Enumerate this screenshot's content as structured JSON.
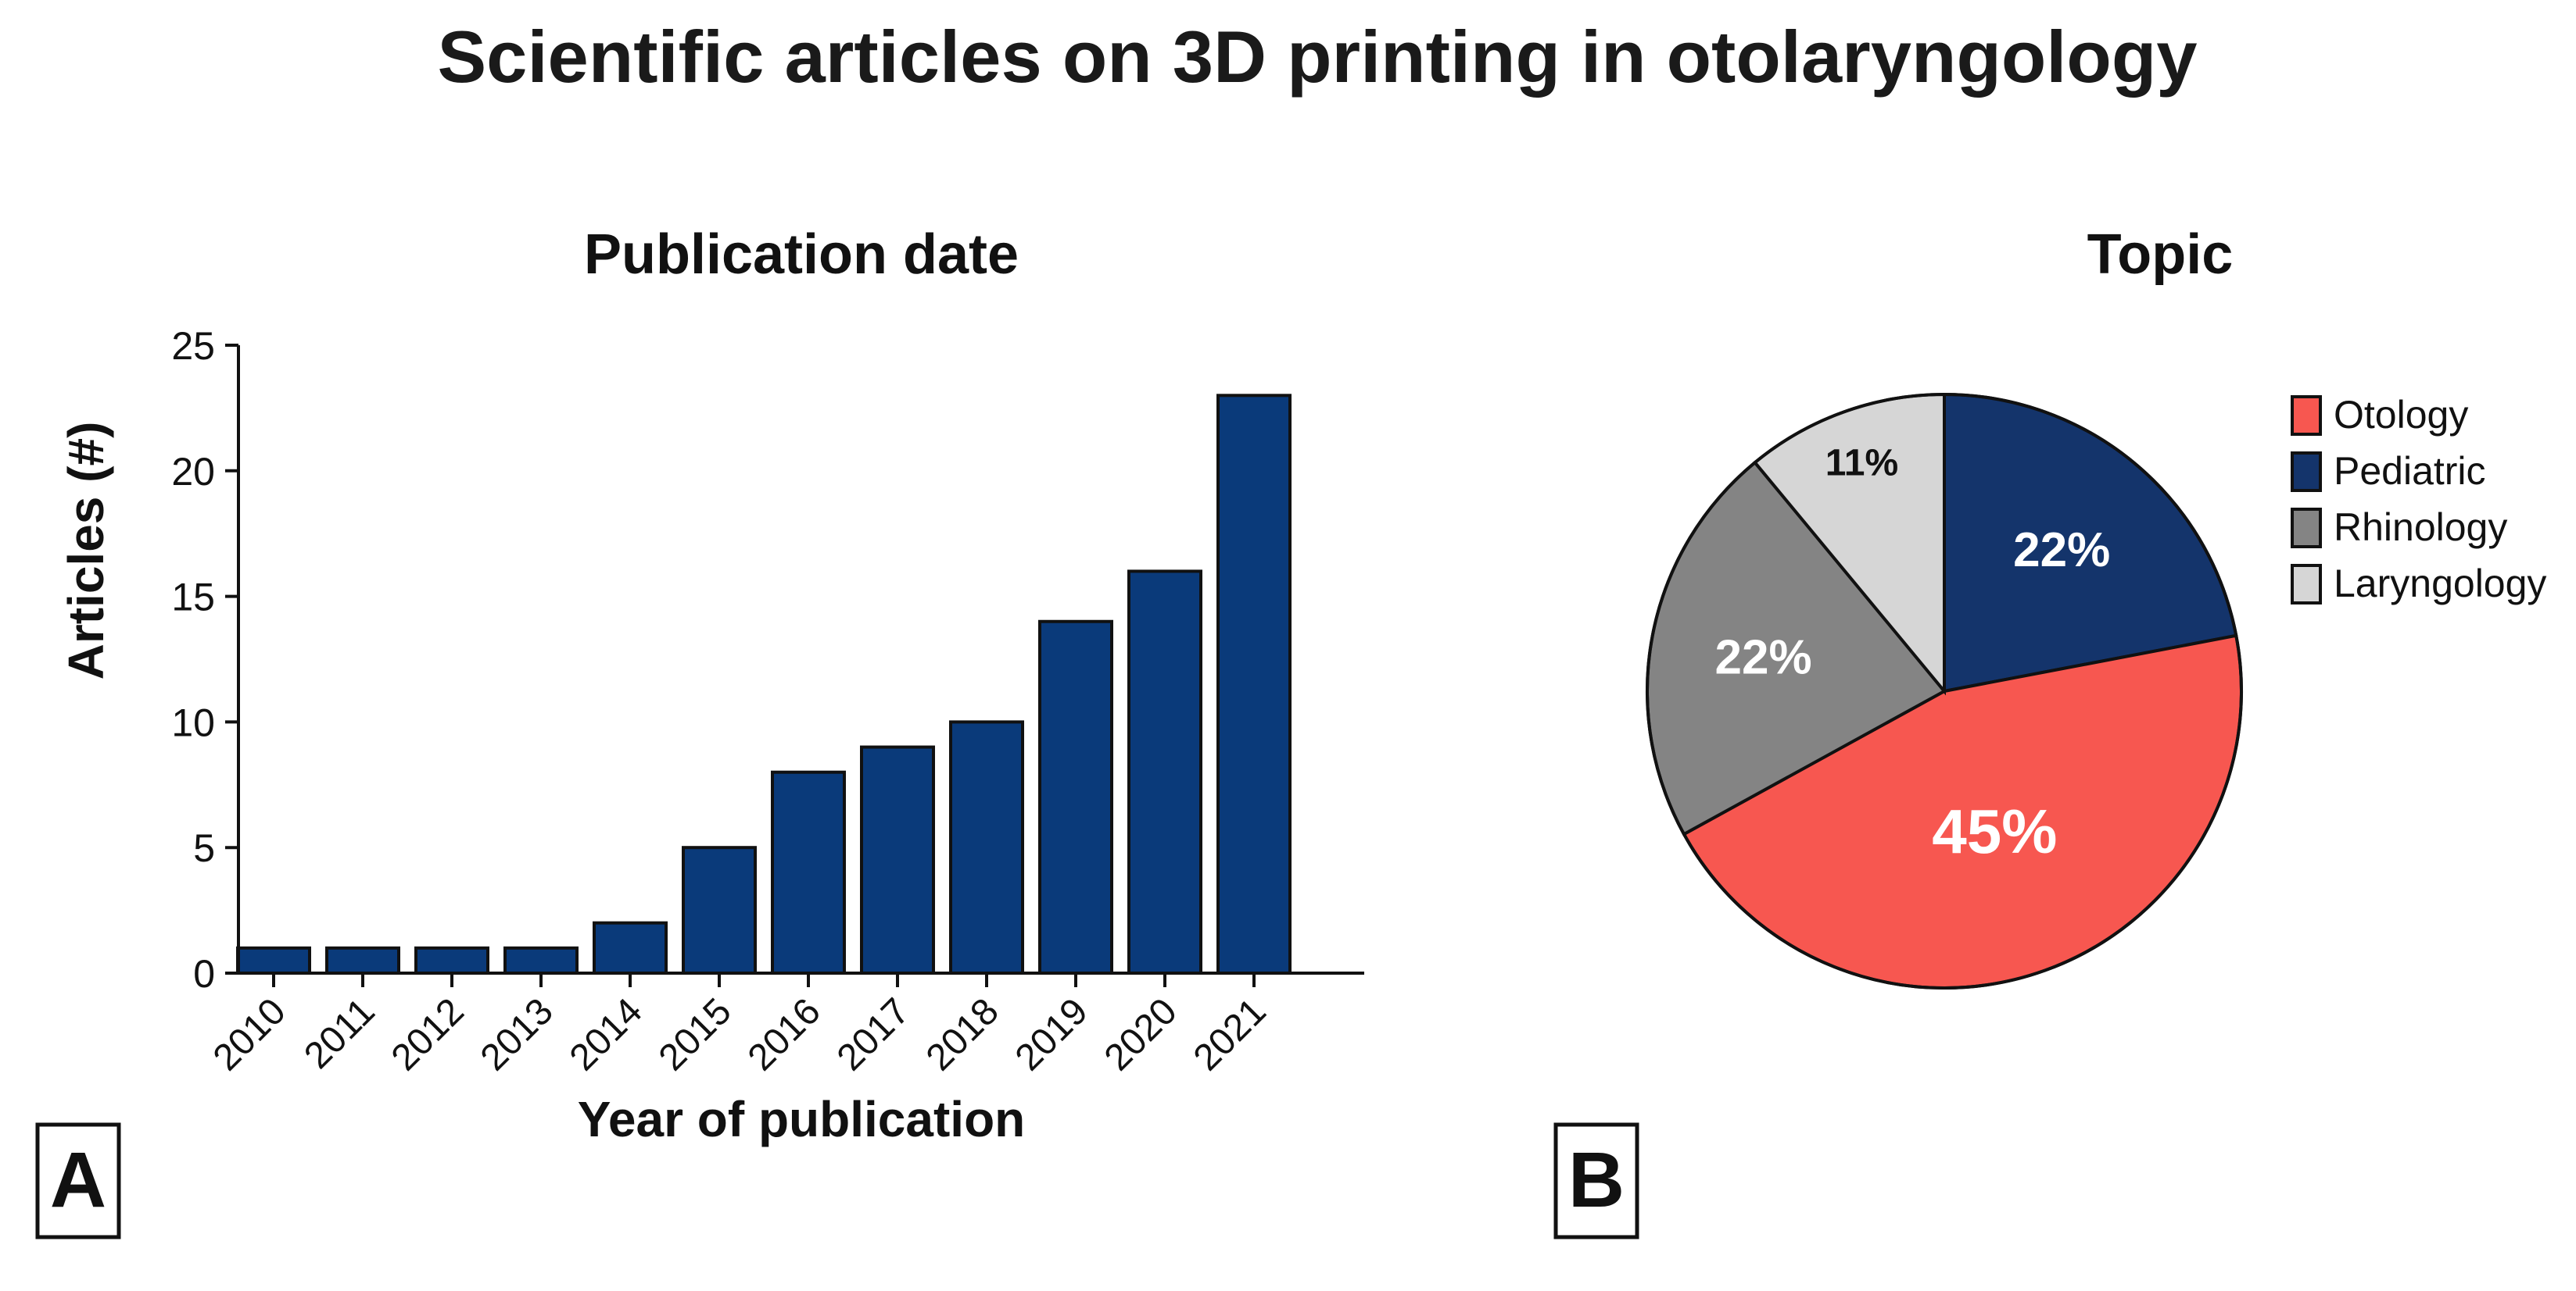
{
  "title": "Scientific articles on 3D printing in otolaryngology",
  "panels": {
    "a": {
      "label": "A"
    },
    "b": {
      "label": "B"
    }
  },
  "chart_data": [
    {
      "type": "bar",
      "title": "Publication date",
      "xlabel": "Year of publication",
      "ylabel": "Articles (#)",
      "categories": [
        "2010",
        "2011",
        "2012",
        "2013",
        "2014",
        "2015",
        "2016",
        "2017",
        "2018",
        "2019",
        "2020",
        "2021"
      ],
      "values": [
        1,
        1,
        1,
        1,
        2,
        5,
        8,
        9,
        10,
        14,
        16,
        23
      ],
      "ylim": [
        0,
        25
      ],
      "yticks": [
        0,
        5,
        10,
        15,
        20,
        25
      ],
      "bar_color": "#0a3a7a",
      "grid": false
    },
    {
      "type": "pie",
      "title": "Topic",
      "legend_position": "right",
      "slices": [
        {
          "label": "Pediatric",
          "value": 22,
          "display": "22%",
          "color": "#14346b",
          "text_color": "#ffffff"
        },
        {
          "label": "Otology",
          "value": 45,
          "display": "45%",
          "color": "#f75750",
          "text_color": "#ffffff"
        },
        {
          "label": "Rhinology",
          "value": 22,
          "display": "22%",
          "color": "#848484",
          "text_color": "#ffffff"
        },
        {
          "label": "Laryngology",
          "value": 11,
          "display": "11%",
          "color": "#d6d6d6",
          "text_color": "#111111"
        }
      ],
      "legend": [
        "Otology",
        "Pediatric",
        "Rhinology",
        "Laryngology"
      ]
    }
  ]
}
